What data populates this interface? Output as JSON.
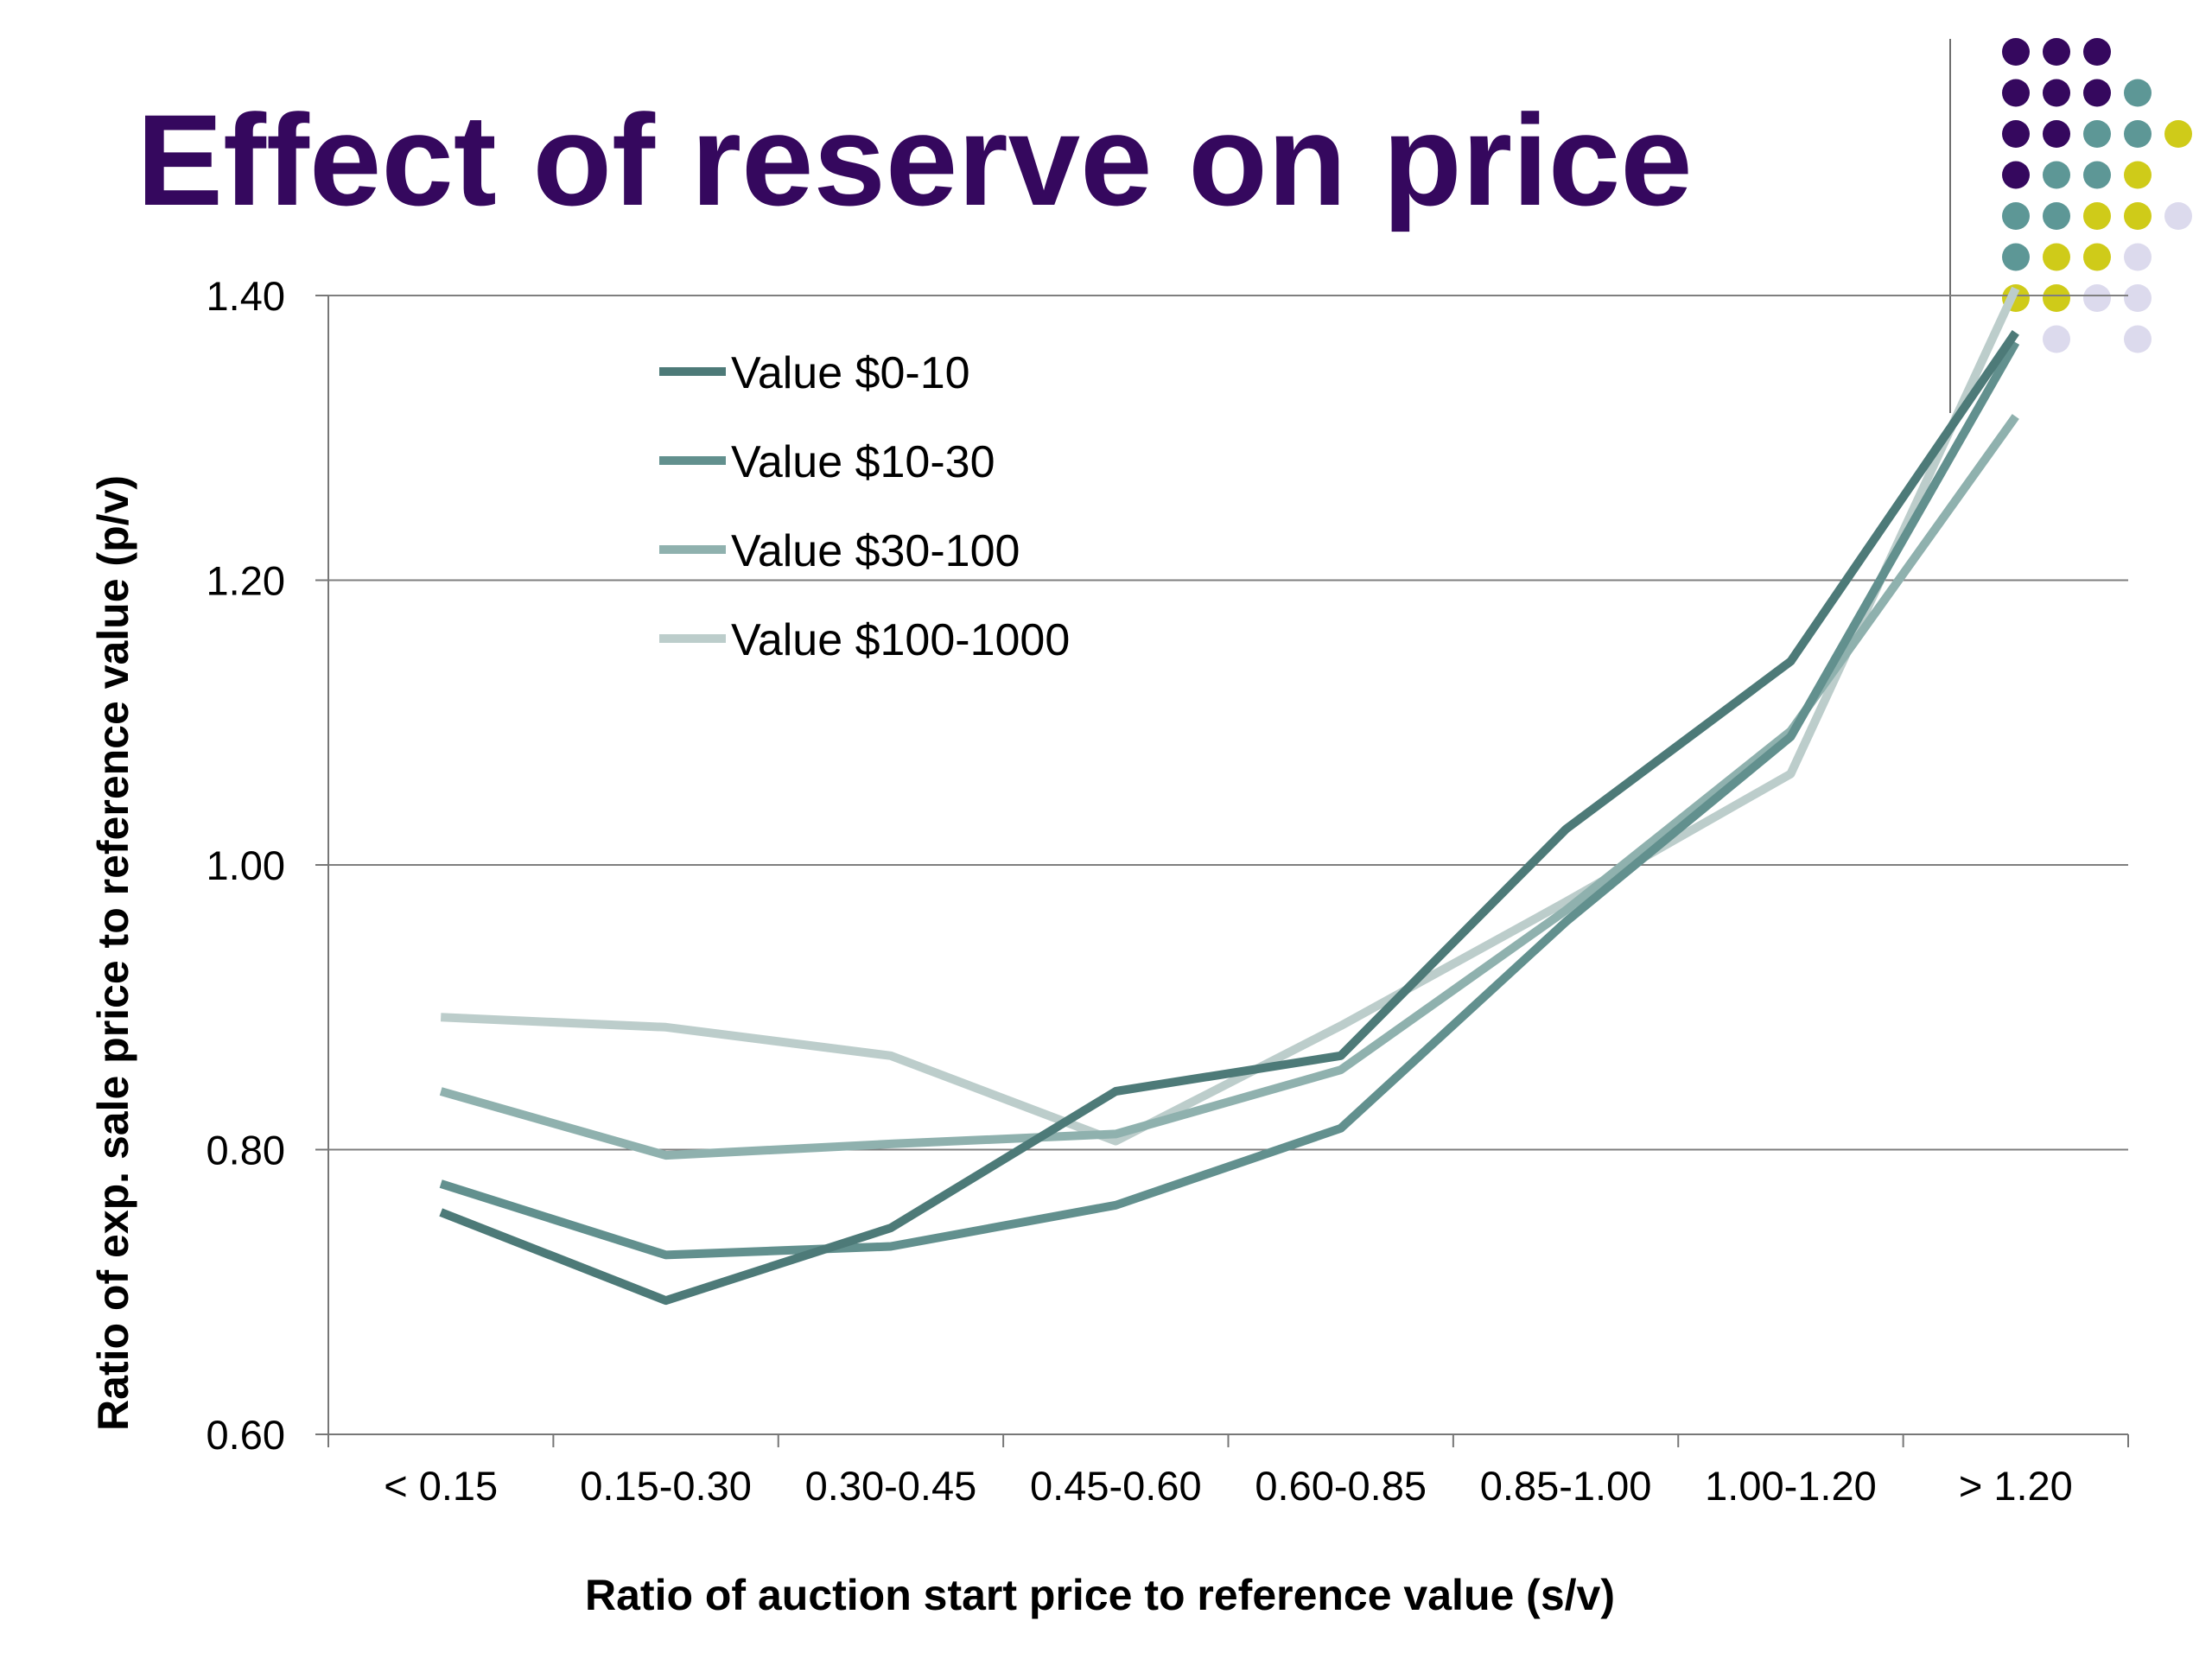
{
  "title": "Effect of reserve on price",
  "colors": {
    "title": "#35085e",
    "series": [
      "#4d7a78",
      "#62908e",
      "#8fb1ae",
      "#bccdcb"
    ],
    "grid": "#7f7f7f",
    "dots": {
      "purple": "#35085e",
      "teal": "#5d9796",
      "yellow": "#cfcb19",
      "lavender": "#dcdaed"
    }
  },
  "decor": {
    "dot_grid": [
      [
        "purple",
        "purple",
        "purple",
        "",
        ""
      ],
      [
        "purple",
        "purple",
        "purple",
        "teal",
        ""
      ],
      [
        "purple",
        "purple",
        "teal",
        "teal",
        "yellow"
      ],
      [
        "purple",
        "teal",
        "teal",
        "yellow",
        ""
      ],
      [
        "teal",
        "teal",
        "yellow",
        "yellow",
        "lavender"
      ],
      [
        "teal",
        "yellow",
        "yellow",
        "lavender",
        ""
      ],
      [
        "yellow",
        "yellow",
        "lavender",
        "lavender",
        ""
      ],
      [
        "",
        "lavender",
        "",
        "lavender",
        ""
      ]
    ]
  },
  "chart_data": {
    "type": "line",
    "title": "",
    "xlabel": "Ratio of auction start price to reference value (s/v)",
    "ylabel": "Ratio of exp. sale price to reference value (p/v)",
    "ylim": [
      0.6,
      1.4
    ],
    "yticks": [
      "0.60",
      "0.80",
      "1.00",
      "1.20",
      "1.40"
    ],
    "grid": "horizontal",
    "legend_position": "top-left",
    "categories": [
      "< 0.15",
      "0.15-0.30",
      "0.30-0.45",
      "0.45-0.60",
      "0.60-0.85",
      "0.85-1.00",
      "1.00-1.20",
      "> 1.20"
    ],
    "series": [
      {
        "name": "Value $0-10",
        "values": [
          0.756,
          0.694,
          0.745,
          0.841,
          0.866,
          1.025,
          1.143,
          1.374
        ]
      },
      {
        "name": "Value $10-30",
        "values": [
          0.776,
          0.726,
          0.732,
          0.761,
          0.815,
          0.96,
          1.09,
          1.367
        ]
      },
      {
        "name": "Value $30-100",
        "values": [
          0.841,
          0.796,
          0.804,
          0.811,
          0.856,
          0.968,
          1.094,
          1.315
        ]
      },
      {
        "name": "Value $100-1000",
        "values": [
          0.893,
          0.886,
          0.866,
          0.806,
          0.887,
          0.974,
          1.064,
          1.405
        ]
      }
    ]
  }
}
